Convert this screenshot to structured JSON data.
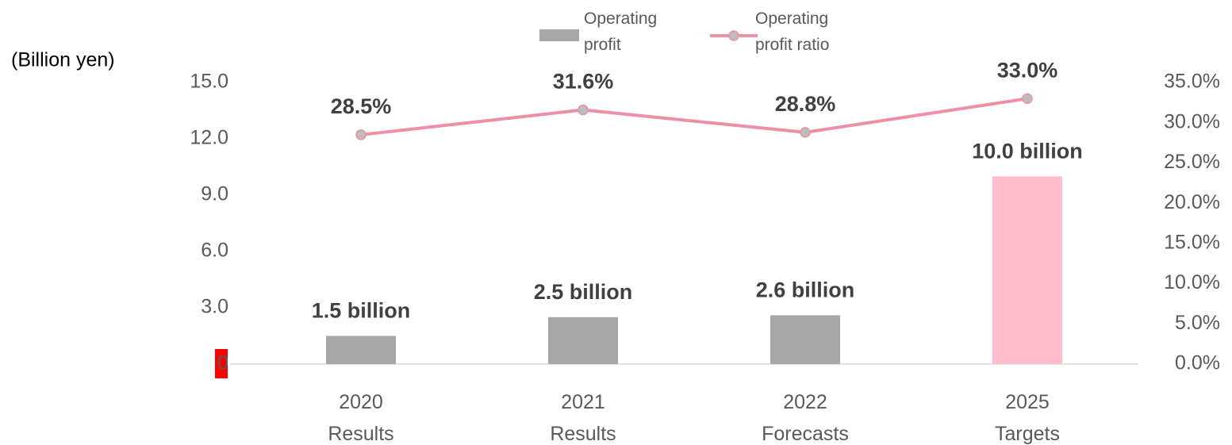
{
  "chart_data": {
    "type": "bar-line",
    "y_axis_label": "(Billion yen)",
    "categories": [
      "2020 Results",
      "2021 Results",
      "2022 Forecasts",
      "2025 Targets"
    ],
    "series": [
      {
        "name": "Operating profit",
        "type": "bar",
        "color": "#a6a6a6",
        "colors": [
          "#a6a6a6",
          "#a6a6a6",
          "#a6a6a6",
          "#ffbccb"
        ],
        "values": [
          1.5,
          2.5,
          2.6,
          10.0
        ],
        "value_labels": [
          "1.5 billion",
          "2.5 billion",
          "2.6 billion",
          "10.0 billion"
        ]
      },
      {
        "name": "Operating profit ratio",
        "type": "line",
        "axis": "y2",
        "color": "#ee8fa4",
        "marker_color": "#bdbdbd",
        "values": [
          28.5,
          31.6,
          28.8,
          33.0
        ],
        "value_labels": [
          "28.5%",
          "31.6%",
          "28.8%",
          "33.0%"
        ]
      }
    ],
    "ylim": [
      0,
      15
    ],
    "yticks": [
      0,
      {
        "value": 3,
        "label": "3.0"
      },
      {
        "value": 6,
        "label": "6.0"
      },
      {
        "value": 9,
        "label": "9.0"
      },
      {
        "value": 12,
        "label": "12.0"
      },
      {
        "value": 15,
        "label": "15.0"
      }
    ],
    "y2lim": [
      0,
      35
    ],
    "y2ticks": [
      {
        "value": 0,
        "label": "0.0%"
      },
      {
        "value": 5,
        "label": "5.0%"
      },
      {
        "value": 10,
        "label": "10.0%"
      },
      {
        "value": 15,
        "label": "15.0%"
      },
      {
        "value": 20,
        "label": "20.0%"
      },
      {
        "value": 25,
        "label": "25.0%"
      },
      {
        "value": 30,
        "label": "30.0%"
      },
      {
        "value": 35,
        "label": "35.0%"
      }
    ],
    "grid": false,
    "legend": "top"
  }
}
